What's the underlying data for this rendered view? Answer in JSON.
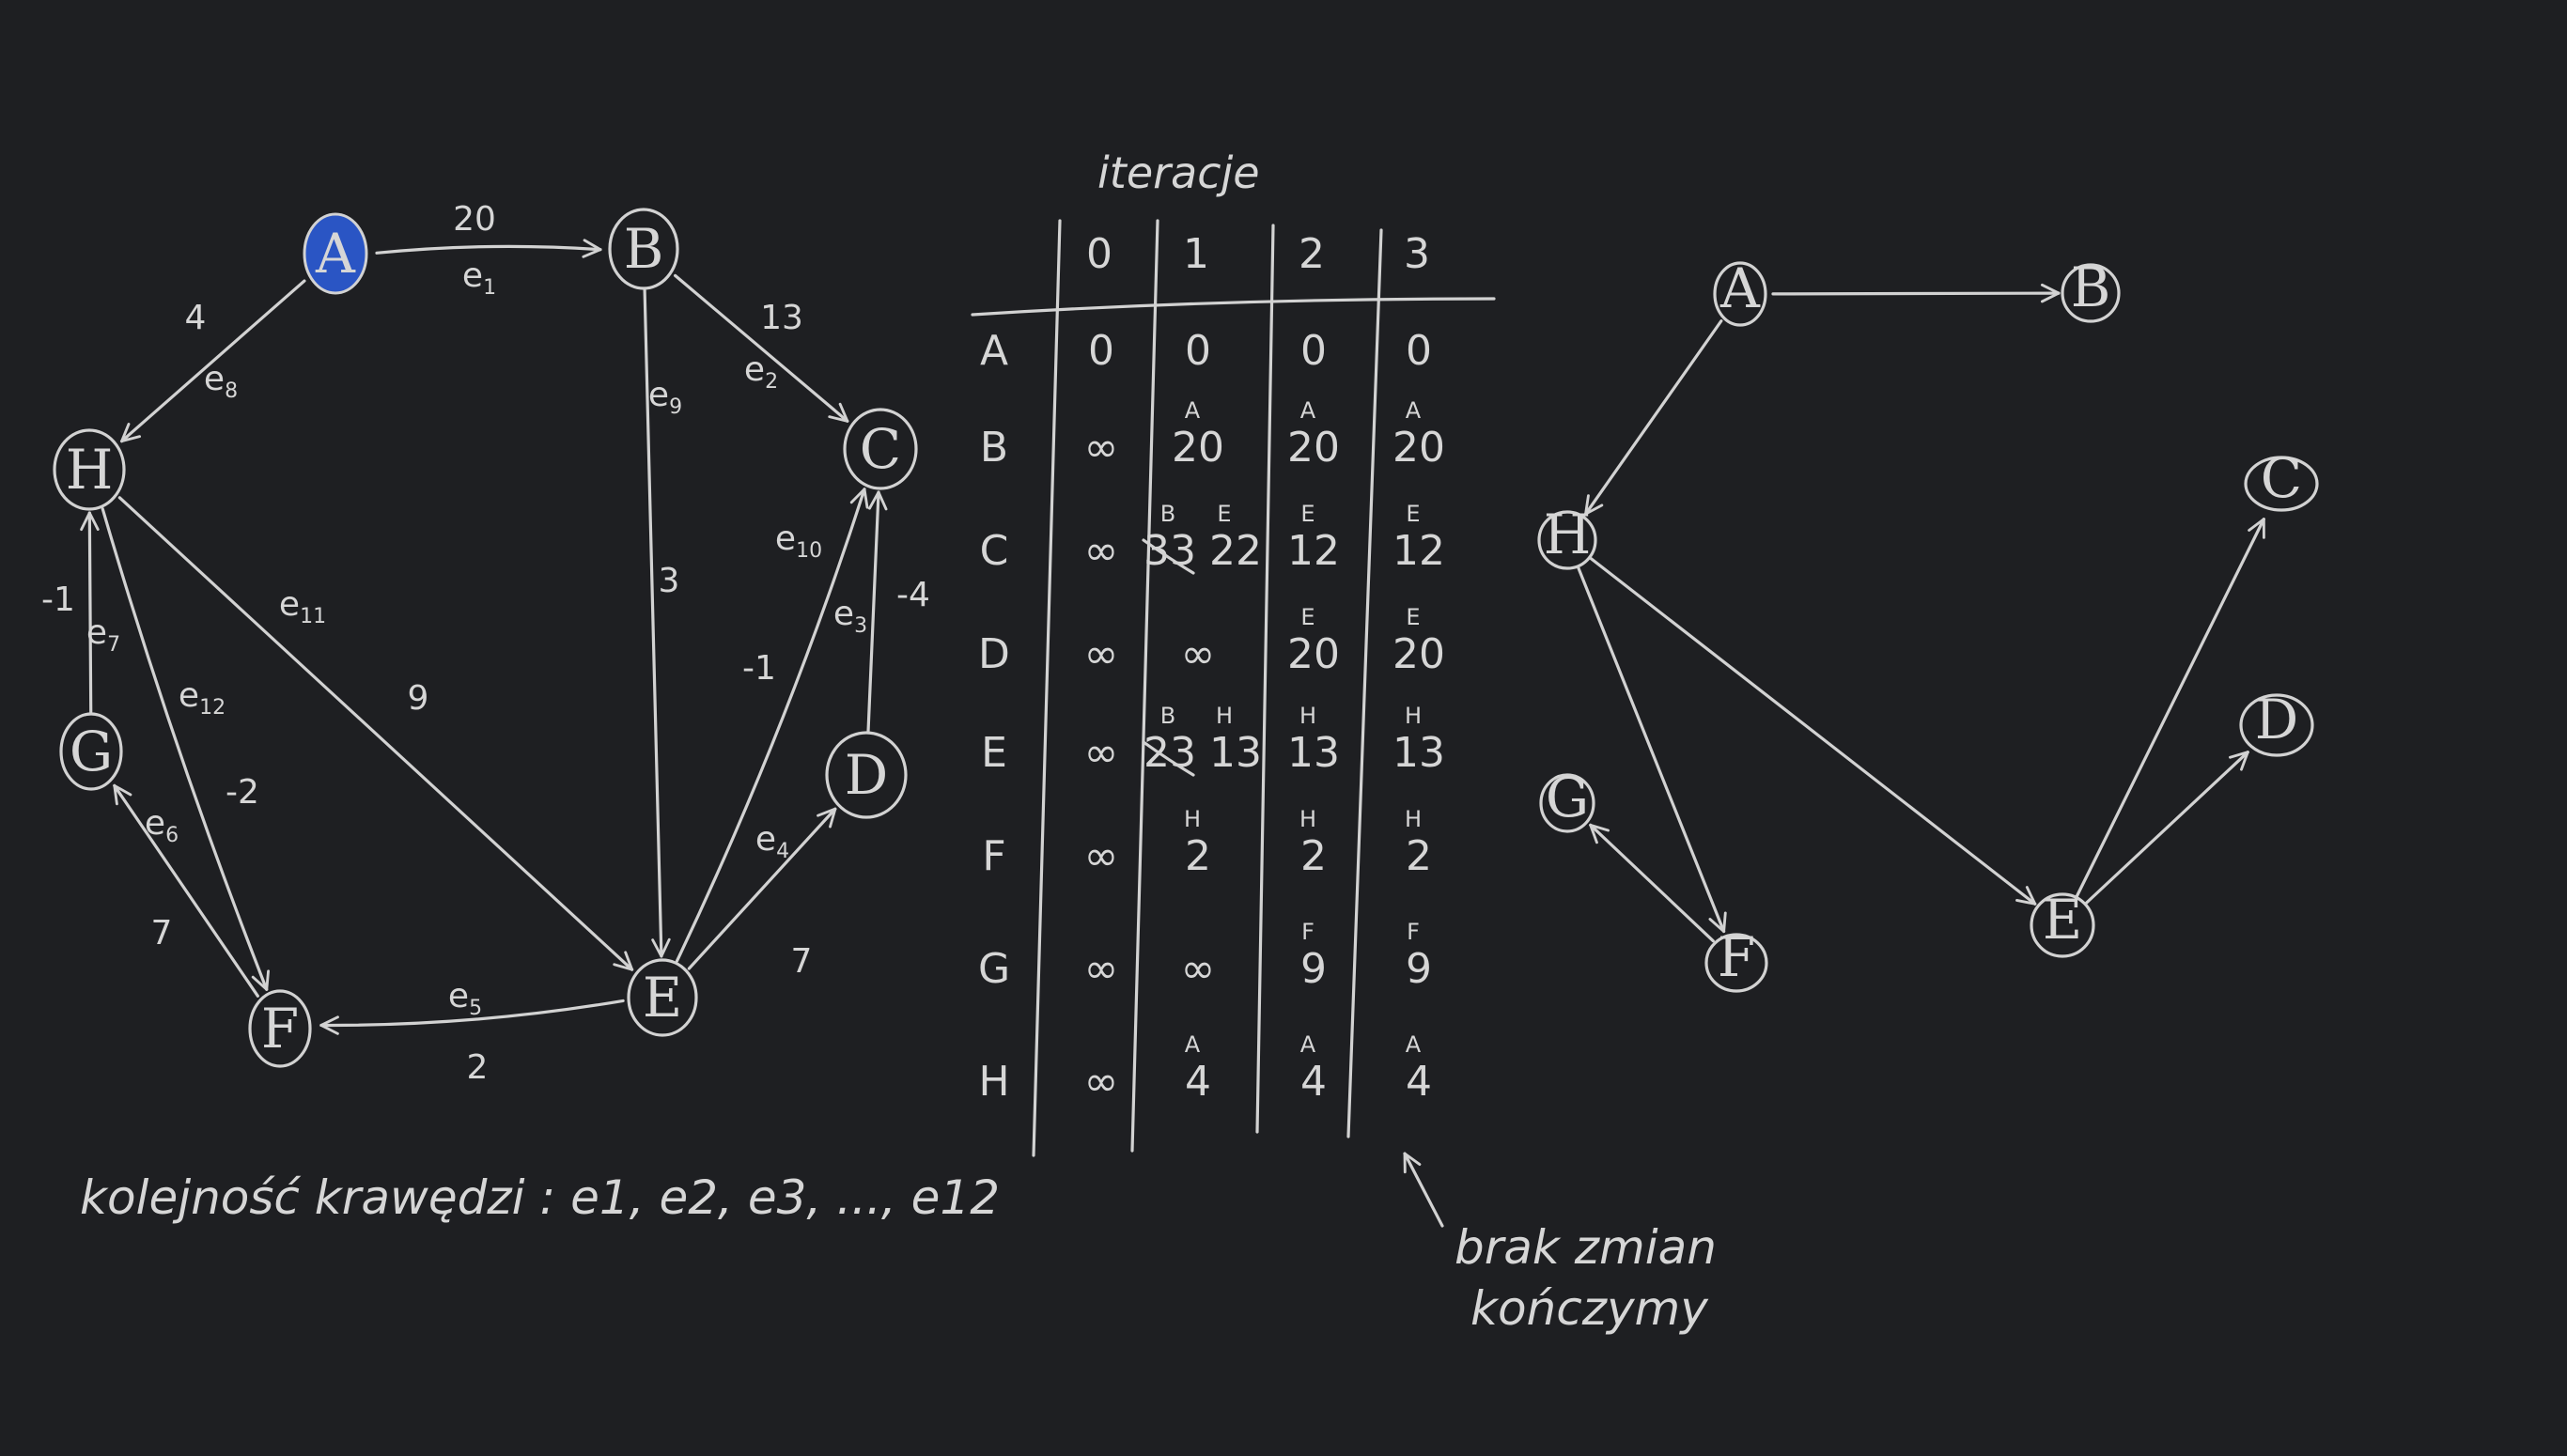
{
  "left_graph": {
    "nodes": [
      {
        "id": "A",
        "label": "A",
        "highlight": true
      },
      {
        "id": "B",
        "label": "B"
      },
      {
        "id": "C",
        "label": "C"
      },
      {
        "id": "D",
        "label": "D"
      },
      {
        "id": "E",
        "label": "E"
      },
      {
        "id": "F",
        "label": "F"
      },
      {
        "id": "G",
        "label": "G"
      },
      {
        "id": "H",
        "label": "H"
      }
    ],
    "edges": [
      {
        "from": "A",
        "to": "B",
        "weight": "20",
        "name": "e1"
      },
      {
        "from": "B",
        "to": "C",
        "weight": "13",
        "name": "e2"
      },
      {
        "from": "D",
        "to": "C",
        "weight": "-4",
        "name": "e3"
      },
      {
        "from": "E",
        "to": "D",
        "weight": "7",
        "name": "e4"
      },
      {
        "from": "E",
        "to": "F",
        "weight": "2",
        "name": "e5"
      },
      {
        "from": "F",
        "to": "G",
        "weight": "7",
        "name": "e6"
      },
      {
        "from": "G",
        "to": "H",
        "weight": "-1",
        "name": "e7"
      },
      {
        "from": "A",
        "to": "H",
        "weight": "4",
        "name": "e8"
      },
      {
        "from": "B",
        "to": "E",
        "weight": "3",
        "name": "e9"
      },
      {
        "from": "E",
        "to": "C",
        "weight": "-1",
        "name": "e10"
      },
      {
        "from": "H",
        "to": "E",
        "weight": "9",
        "name": "e11"
      },
      {
        "from": "H",
        "to": "F",
        "weight": "-2",
        "name": "e12"
      }
    ],
    "highlight_color": "#2a55c4"
  },
  "edge_order_note": "kolejność krawędzi : e1, e2, e3, ..., e12",
  "table": {
    "title": "iteracje",
    "columns": [
      "0",
      "1",
      "2",
      "3"
    ],
    "rows": [
      {
        "node": "A",
        "cells": [
          {
            "v": "0",
            "p": ""
          },
          {
            "v": "0",
            "p": ""
          },
          {
            "v": "0",
            "p": ""
          },
          {
            "v": "0",
            "p": ""
          }
        ]
      },
      {
        "node": "B",
        "cells": [
          {
            "v": "∞",
            "p": ""
          },
          {
            "v": "20",
            "p": "A"
          },
          {
            "v": "20",
            "p": "A"
          },
          {
            "v": "20",
            "p": "A"
          }
        ]
      },
      {
        "node": "C",
        "cells": [
          {
            "v": "∞",
            "p": ""
          },
          {
            "v": "33",
            "p": "B",
            "struck": true,
            "v2": "22",
            "p2": "E"
          },
          {
            "v": "12",
            "p": "E"
          },
          {
            "v": "12",
            "p": "E"
          }
        ]
      },
      {
        "node": "D",
        "cells": [
          {
            "v": "∞",
            "p": ""
          },
          {
            "v": "∞",
            "p": ""
          },
          {
            "v": "20",
            "p": "E"
          },
          {
            "v": "20",
            "p": "E"
          }
        ]
      },
      {
        "node": "E",
        "cells": [
          {
            "v": "∞",
            "p": ""
          },
          {
            "v": "23",
            "p": "B",
            "struck": true,
            "v2": "13",
            "p2": "H"
          },
          {
            "v": "13",
            "p": "H"
          },
          {
            "v": "13",
            "p": "H"
          }
        ]
      },
      {
        "node": "F",
        "cells": [
          {
            "v": "∞",
            "p": ""
          },
          {
            "v": "2",
            "p": "H"
          },
          {
            "v": "2",
            "p": "H"
          },
          {
            "v": "2",
            "p": "H"
          }
        ]
      },
      {
        "node": "G",
        "cells": [
          {
            "v": "∞",
            "p": ""
          },
          {
            "v": "∞",
            "p": ""
          },
          {
            "v": "9",
            "p": "F"
          },
          {
            "v": "9",
            "p": "F"
          }
        ]
      },
      {
        "node": "H",
        "cells": [
          {
            "v": "∞",
            "p": ""
          },
          {
            "v": "4",
            "p": "A"
          },
          {
            "v": "4",
            "p": "A"
          },
          {
            "v": "4",
            "p": "A"
          }
        ]
      }
    ]
  },
  "annotation": {
    "line1": "brak zmian",
    "line2": "kończymy"
  },
  "right_tree": {
    "nodes": [
      "A",
      "B",
      "C",
      "D",
      "E",
      "F",
      "G",
      "H"
    ],
    "edges": [
      {
        "from": "A",
        "to": "B"
      },
      {
        "from": "A",
        "to": "H"
      },
      {
        "from": "H",
        "to": "F"
      },
      {
        "from": "H",
        "to": "E"
      },
      {
        "from": "F",
        "to": "G"
      },
      {
        "from": "E",
        "to": "C"
      },
      {
        "from": "E",
        "to": "D"
      }
    ]
  }
}
